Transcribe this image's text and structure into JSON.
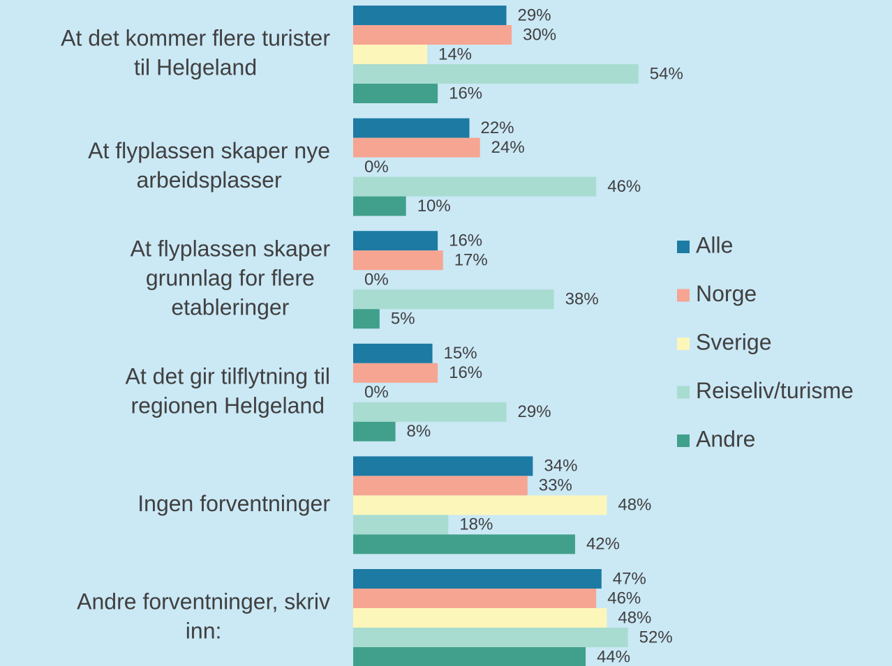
{
  "chart_data": {
    "type": "barh",
    "categories": [
      [
        "At det kommer flere turister",
        "til Helgeland"
      ],
      [
        "At flyplassen skaper nye",
        "arbeidsplasser"
      ],
      [
        "At flyplassen skaper",
        "grunnlag for flere",
        "etableringer"
      ],
      [
        "At det gir tilflytning til",
        "regionen Helgeland"
      ],
      [
        "Ingen forventninger"
      ],
      [
        "Andre forventninger, skriv",
        "inn:"
      ]
    ],
    "series": [
      {
        "name": "Alle",
        "color": "#1c7aa3",
        "values": [
          29,
          22,
          16,
          15,
          34,
          47
        ],
        "value_labels": [
          "29%",
          "22%",
          "16%",
          "15%",
          "34%",
          "47%"
        ]
      },
      {
        "name": "Norge",
        "color": "#f6a592",
        "values": [
          30,
          24,
          17,
          16,
          33,
          46
        ],
        "value_labels": [
          "30%",
          "24%",
          "17%",
          "16%",
          "33%",
          "46%"
        ]
      },
      {
        "name": "Sverige",
        "color": "#fdf6bb",
        "values": [
          14,
          0,
          0,
          0,
          48,
          48
        ],
        "value_labels": [
          "14%",
          "0%",
          "0%",
          "0%",
          "48%",
          "48%"
        ]
      },
      {
        "name": "Reiseliv/turisme",
        "color": "#a8dcd0",
        "values": [
          54,
          46,
          38,
          29,
          18,
          52
        ],
        "value_labels": [
          "54%",
          "46%",
          "38%",
          "29%",
          "18%",
          "52%"
        ]
      },
      {
        "name": "Andre",
        "color": "#41a08b",
        "values": [
          16,
          10,
          5,
          8,
          42,
          44
        ],
        "value_labels": [
          "16%",
          "10%",
          "5%",
          "8%",
          "42%",
          "44%"
        ]
      }
    ],
    "legend": "right"
  }
}
